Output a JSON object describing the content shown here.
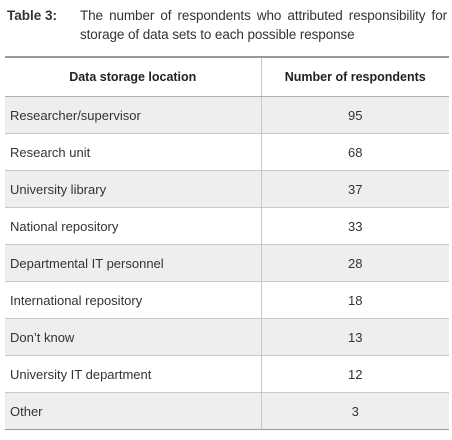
{
  "caption": {
    "label": "Table 3:",
    "text": "The number of respondents who attributed responsibility for storage of data sets to each possible response"
  },
  "table": {
    "headers": [
      "Data storage location",
      "Number of respondents"
    ],
    "rows": [
      {
        "location": "Researcher/supervisor",
        "count": "95"
      },
      {
        "location": "Research unit",
        "count": "68"
      },
      {
        "location": "University library",
        "count": "37"
      },
      {
        "location": "National repository",
        "count": "33"
      },
      {
        "location": "Departmental IT personnel",
        "count": "28"
      },
      {
        "location": "International repository",
        "count": "18"
      },
      {
        "location": "Don’t know",
        "count": "13"
      },
      {
        "location": "University IT department",
        "count": "12"
      },
      {
        "location": "Other",
        "count": "3"
      }
    ]
  }
}
